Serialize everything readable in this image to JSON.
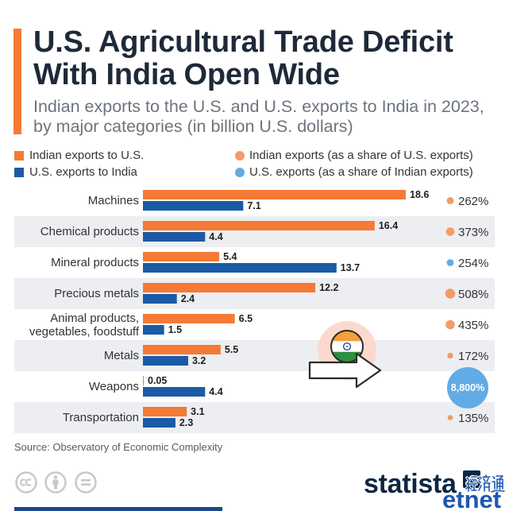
{
  "title": {
    "lines": [
      "U.S. Agricultural Trade Deficit",
      "With India Open Wide"
    ]
  },
  "subtitle": {
    "lines": [
      "Indian exports to the U.S. and U.S. exports to India in 2023,",
      "by major categories (in billion U.S. dollars)"
    ]
  },
  "colors": {
    "accent": "#f47a35",
    "indian_bar": "#f47a35",
    "us_bar": "#1b5aa6",
    "indian_share": "#f29b68",
    "us_share": "#62abe4",
    "row_shade": "#eceef1",
    "title": "#1e2939",
    "brand": "#0e2642",
    "watermark": "#1f57b0"
  },
  "chart_data": {
    "type": "bar",
    "orientation": "horizontal",
    "bar_mode": "grouped",
    "legend_position": "top",
    "grid": false,
    "categories": [
      "Machines",
      "Chemical products",
      "Mineral products",
      "Precious metals",
      "Animal products, vegetables, foodstuff",
      "Metals",
      "Weapons",
      "Transportation"
    ],
    "series": [
      {
        "name": "Indian exports to U.S.",
        "values": [
          18.6,
          16.4,
          5.4,
          12.2,
          6.5,
          5.5,
          0.05,
          3.1
        ]
      },
      {
        "name": "U.S. exports to India",
        "values": [
          7.1,
          4.4,
          13.7,
          2.4,
          1.5,
          3.2,
          4.4,
          2.3
        ]
      }
    ],
    "share_legend": [
      {
        "label": "Indian exports (as a share of U.S. exports)",
        "color": "#f29b68"
      },
      {
        "label": "U.S. exports (as a share of Indian exports)",
        "color": "#62abe4"
      }
    ],
    "shares": [
      {
        "label": "262%",
        "value": 262,
        "color": "#f29b68"
      },
      {
        "label": "373%",
        "value": 373,
        "color": "#f29b68"
      },
      {
        "label": "254%",
        "value": 254,
        "color": "#62abe4"
      },
      {
        "label": "508%",
        "value": 508,
        "color": "#f29b68"
      },
      {
        "label": "435%",
        "value": 435,
        "color": "#f29b68"
      },
      {
        "label": "172%",
        "value": 172,
        "color": "#f29b68"
      },
      {
        "label": "8,800%",
        "value": 8800,
        "color": "#62abe4"
      },
      {
        "label": "135%",
        "value": 135,
        "color": "#f29b68"
      }
    ]
  },
  "source": "Source: Observatory of Economic Complexity",
  "brand": {
    "name": "statista"
  },
  "license_icons": [
    "cc-icon",
    "attribution-icon",
    "no-derivatives-icon"
  ],
  "illustration_icons": [
    "india-flag-icon",
    "arrow-right-icon"
  ],
  "watermark": {
    "chinese": "經濟通",
    "latin": "etnet"
  }
}
